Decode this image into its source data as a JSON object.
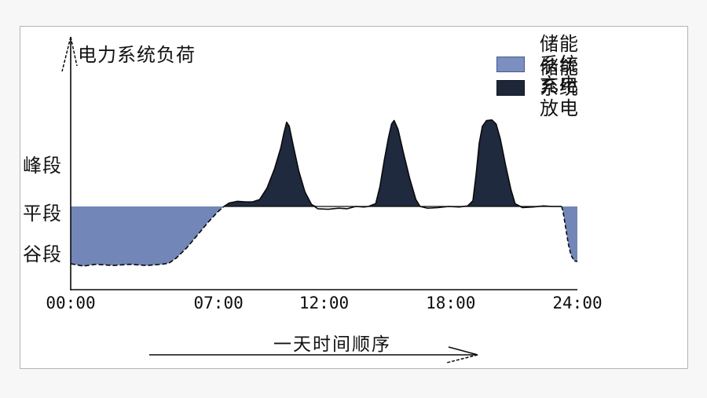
{
  "chart_data": {
    "type": "area",
    "title": "",
    "y_axis_title": "电力系统负荷",
    "x_axis_note": "一天时间顺序",
    "x_ticks": [
      "00:00",
      "07:00",
      "12:00",
      "18:00",
      "24:00"
    ],
    "x_tick_hours": [
      0,
      7,
      12,
      18,
      24
    ],
    "x_range_hours": [
      0,
      24
    ],
    "y_level_labels": [
      "峰段",
      "平段",
      "谷段"
    ],
    "y_level_meaning": {
      "谷段": 1.0,
      "平段": 2.0,
      "峰段_label_level": 2.85,
      "peak_top_level": 3.5
    },
    "legend": [
      {
        "label": "储能系统充电",
        "role": "charge",
        "color": "#7b8fc1",
        "border": "#47598e"
      },
      {
        "label": "储能系统放电",
        "role": "discharge",
        "color": "#1e2737",
        "border": "#0d1322"
      }
    ],
    "colors": {
      "charge_fill": "#7286b8",
      "discharge_fill": "#202a3e",
      "curve": "#0a0a0a",
      "axis": "#0a0a0a"
    },
    "load_curve": {
      "units": "[hour, level] where 1=谷段 valley, 2=平段 flat, ~3.5=peak top",
      "valley_dashed": [
        [
          0,
          1.0
        ],
        [
          0.6,
          0.96
        ],
        [
          1.2,
          0.99
        ],
        [
          2.0,
          0.97
        ],
        [
          2.8,
          0.99
        ],
        [
          3.6,
          0.97
        ],
        [
          4.3,
          0.99
        ],
        [
          4.65,
          1.01
        ],
        [
          5.0,
          1.1
        ],
        [
          5.5,
          1.28
        ],
        [
          6.0,
          1.5
        ],
        [
          6.5,
          1.72
        ],
        [
          6.95,
          1.9
        ],
        [
          7.26,
          2.0
        ]
      ],
      "main": [
        [
          7.26,
          2.0
        ],
        [
          7.5,
          2.06
        ],
        [
          7.9,
          2.09
        ],
        [
          8.3,
          2.08
        ],
        [
          8.6,
          2.08
        ],
        [
          8.95,
          2.12
        ],
        [
          9.3,
          2.32
        ],
        [
          9.65,
          2.65
        ],
        [
          9.95,
          3.02
        ],
        [
          10.1,
          3.28
        ],
        [
          10.23,
          3.47
        ],
        [
          10.35,
          3.4
        ],
        [
          10.55,
          3.05
        ],
        [
          10.8,
          2.62
        ],
        [
          11.1,
          2.25
        ],
        [
          11.4,
          2.04
        ],
        [
          11.7,
          1.96
        ],
        [
          12.2,
          1.95
        ],
        [
          12.7,
          1.97
        ],
        [
          13.1,
          1.96
        ],
        [
          13.5,
          2.0
        ],
        [
          13.9,
          1.99
        ],
        [
          14.1,
          2.0
        ],
        [
          14.45,
          2.05
        ],
        [
          14.65,
          2.35
        ],
        [
          14.85,
          2.8
        ],
        [
          15.05,
          3.2
        ],
        [
          15.2,
          3.44
        ],
        [
          15.32,
          3.5
        ],
        [
          15.5,
          3.35
        ],
        [
          15.75,
          2.95
        ],
        [
          16.05,
          2.5
        ],
        [
          16.35,
          2.12
        ],
        [
          16.55,
          2.0
        ],
        [
          16.9,
          1.97
        ],
        [
          17.4,
          1.98
        ],
        [
          17.9,
          2.0
        ],
        [
          18.4,
          1.99
        ],
        [
          18.8,
          2.01
        ],
        [
          19.05,
          2.1
        ],
        [
          19.2,
          2.55
        ],
        [
          19.35,
          3.1
        ],
        [
          19.5,
          3.4
        ],
        [
          19.7,
          3.5
        ],
        [
          19.95,
          3.51
        ],
        [
          20.15,
          3.44
        ],
        [
          20.35,
          3.18
        ],
        [
          20.6,
          2.72
        ],
        [
          20.85,
          2.3
        ],
        [
          21.05,
          2.05
        ],
        [
          21.4,
          1.98
        ],
        [
          21.9,
          1.99
        ],
        [
          22.4,
          2.01
        ],
        [
          22.8,
          2.0
        ],
        [
          23.26,
          2.0
        ]
      ],
      "drop_dashed": [
        [
          23.26,
          2.0
        ],
        [
          23.35,
          1.85
        ],
        [
          23.45,
          1.62
        ],
        [
          23.57,
          1.35
        ],
        [
          23.7,
          1.15
        ],
        [
          23.85,
          1.05
        ],
        [
          24.0,
          1.04
        ]
      ]
    },
    "charge_regions_hours": [
      [
        0,
        7.26
      ],
      [
        23.26,
        24
      ]
    ],
    "discharge_peak_hours": [
      10.2,
      15.3,
      19.9
    ]
  }
}
